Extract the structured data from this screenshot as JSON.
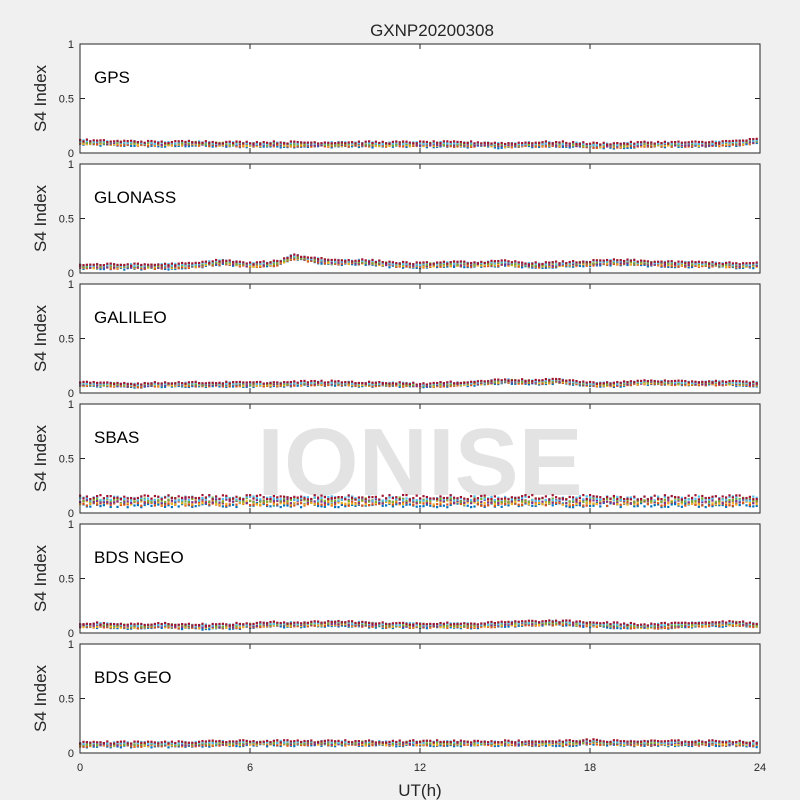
{
  "figure": {
    "title": "GXNP20200308",
    "watermark": "IONISE",
    "background": "#f0f0f0",
    "axes_background": "#ffffff"
  },
  "chart_data": {
    "type": "scatter",
    "xlabel": "UT(h)",
    "ylabel": "S4 Index",
    "xlim": [
      0,
      24
    ],
    "ylim": [
      0,
      1
    ],
    "xticks": [
      0,
      6,
      12,
      18,
      24
    ],
    "yticks": [
      0,
      0.5,
      1
    ],
    "ytick_labels": [
      "0",
      "0.5",
      "1"
    ],
    "series_colors": [
      "#0072BD",
      "#D95319",
      "#EDB120",
      "#7E2F8E",
      "#77AC30",
      "#4DBEEE",
      "#A2142F"
    ],
    "panels": [
      {
        "label": "GPS",
        "profile": [
          [
            0,
            0.1
          ],
          [
            1,
            0.09
          ],
          [
            2,
            0.09
          ],
          [
            3,
            0.08
          ],
          [
            4,
            0.09
          ],
          [
            5,
            0.08
          ],
          [
            6,
            0.08
          ],
          [
            7,
            0.08
          ],
          [
            8,
            0.08
          ],
          [
            9,
            0.08
          ],
          [
            10,
            0.08
          ],
          [
            11,
            0.08
          ],
          [
            12,
            0.08
          ],
          [
            13,
            0.08
          ],
          [
            14,
            0.08
          ],
          [
            15,
            0.07
          ],
          [
            16,
            0.08
          ],
          [
            17,
            0.08
          ],
          [
            18,
            0.07
          ],
          [
            19,
            0.07
          ],
          [
            20,
            0.08
          ],
          [
            21,
            0.08
          ],
          [
            22,
            0.08
          ],
          [
            23,
            0.09
          ],
          [
            24,
            0.11
          ]
        ],
        "spread": 0.035
      },
      {
        "label": "GLONASS",
        "profile": [
          [
            0,
            0.06
          ],
          [
            1,
            0.06
          ],
          [
            2,
            0.06
          ],
          [
            3,
            0.06
          ],
          [
            4,
            0.07
          ],
          [
            5,
            0.1
          ],
          [
            6,
            0.07
          ],
          [
            7,
            0.09
          ],
          [
            7.5,
            0.15
          ],
          [
            8,
            0.13
          ],
          [
            9,
            0.1
          ],
          [
            10,
            0.1
          ],
          [
            11,
            0.08
          ],
          [
            12,
            0.07
          ],
          [
            13,
            0.08
          ],
          [
            14,
            0.08
          ],
          [
            15,
            0.09
          ],
          [
            16,
            0.07
          ],
          [
            17,
            0.08
          ],
          [
            18,
            0.09
          ],
          [
            19,
            0.1
          ],
          [
            20,
            0.09
          ],
          [
            21,
            0.08
          ],
          [
            22,
            0.08
          ],
          [
            23,
            0.07
          ],
          [
            24,
            0.07
          ]
        ],
        "spread": 0.035
      },
      {
        "label": "GALILEO",
        "profile": [
          [
            0,
            0.08
          ],
          [
            1,
            0.08
          ],
          [
            2,
            0.07
          ],
          [
            3,
            0.08
          ],
          [
            4,
            0.08
          ],
          [
            5,
            0.08
          ],
          [
            6,
            0.08
          ],
          [
            7,
            0.08
          ],
          [
            8,
            0.09
          ],
          [
            9,
            0.09
          ],
          [
            10,
            0.08
          ],
          [
            11,
            0.08
          ],
          [
            12,
            0.07
          ],
          [
            13,
            0.08
          ],
          [
            14,
            0.09
          ],
          [
            15,
            0.11
          ],
          [
            16,
            0.1
          ],
          [
            17,
            0.11
          ],
          [
            18,
            0.08
          ],
          [
            19,
            0.08
          ],
          [
            20,
            0.1
          ],
          [
            21,
            0.09
          ],
          [
            22,
            0.09
          ],
          [
            23,
            0.09
          ],
          [
            24,
            0.08
          ]
        ],
        "spread": 0.03
      },
      {
        "label": "SBAS",
        "profile": [
          [
            0,
            0.11
          ],
          [
            1,
            0.11
          ],
          [
            2,
            0.11
          ],
          [
            3,
            0.11
          ],
          [
            4,
            0.11
          ],
          [
            5,
            0.11
          ],
          [
            6,
            0.11
          ],
          [
            7,
            0.11
          ],
          [
            8,
            0.11
          ],
          [
            9,
            0.11
          ],
          [
            10,
            0.11
          ],
          [
            11,
            0.11
          ],
          [
            12,
            0.11
          ],
          [
            13,
            0.11
          ],
          [
            14,
            0.11
          ],
          [
            15,
            0.11
          ],
          [
            16,
            0.11
          ],
          [
            17,
            0.11
          ],
          [
            18,
            0.11
          ],
          [
            19,
            0.11
          ],
          [
            20,
            0.11
          ],
          [
            21,
            0.11
          ],
          [
            22,
            0.11
          ],
          [
            23,
            0.11
          ],
          [
            24,
            0.11
          ]
        ],
        "spread": 0.07
      },
      {
        "label": "BDS NGEO",
        "profile": [
          [
            0,
            0.07
          ],
          [
            1,
            0.07
          ],
          [
            2,
            0.06
          ],
          [
            3,
            0.07
          ],
          [
            4,
            0.06
          ],
          [
            5,
            0.06
          ],
          [
            6,
            0.07
          ],
          [
            7,
            0.08
          ],
          [
            8,
            0.08
          ],
          [
            9,
            0.09
          ],
          [
            10,
            0.08
          ],
          [
            11,
            0.07
          ],
          [
            12,
            0.07
          ],
          [
            13,
            0.07
          ],
          [
            14,
            0.07
          ],
          [
            15,
            0.08
          ],
          [
            16,
            0.09
          ],
          [
            17,
            0.09
          ],
          [
            18,
            0.08
          ],
          [
            19,
            0.07
          ],
          [
            20,
            0.06
          ],
          [
            21,
            0.07
          ],
          [
            22,
            0.08
          ],
          [
            23,
            0.09
          ],
          [
            24,
            0.07
          ]
        ],
        "spread": 0.035
      },
      {
        "label": "BDS GEO",
        "profile": [
          [
            0,
            0.08
          ],
          [
            1,
            0.08
          ],
          [
            2,
            0.08
          ],
          [
            3,
            0.08
          ],
          [
            4,
            0.08
          ],
          [
            5,
            0.09
          ],
          [
            6,
            0.09
          ],
          [
            7,
            0.09
          ],
          [
            8,
            0.09
          ],
          [
            9,
            0.09
          ],
          [
            10,
            0.09
          ],
          [
            11,
            0.09
          ],
          [
            12,
            0.09
          ],
          [
            13,
            0.09
          ],
          [
            14,
            0.09
          ],
          [
            15,
            0.09
          ],
          [
            16,
            0.09
          ],
          [
            17,
            0.09
          ],
          [
            18,
            0.1
          ],
          [
            19,
            0.09
          ],
          [
            20,
            0.09
          ],
          [
            21,
            0.09
          ],
          [
            22,
            0.09
          ],
          [
            23,
            0.09
          ],
          [
            24,
            0.08
          ]
        ],
        "spread": 0.035
      }
    ]
  }
}
